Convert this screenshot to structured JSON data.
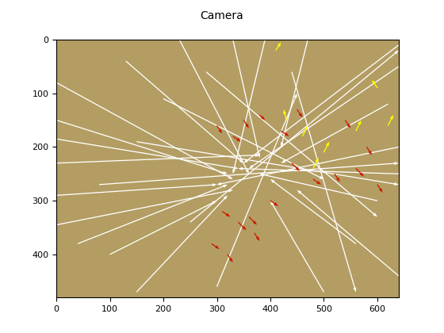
{
  "chart_data": {
    "type": "quiver",
    "title": "Camera",
    "color": "#b39d63",
    "xlim": [
      0,
      640
    ],
    "ylim": [
      480,
      0
    ],
    "xticks": [
      0,
      100,
      200,
      300,
      400,
      500,
      600
    ],
    "yticks": [
      0,
      100,
      200,
      300,
      400
    ],
    "grid": false,
    "series": [
      {
        "color": "#ffffff",
        "x0": [
          0,
          0,
          0,
          0,
          0,
          40,
          100,
          150,
          130,
          230,
          330,
          390,
          470,
          640,
          640,
          620,
          640,
          640,
          600,
          560,
          640,
          500,
          0,
          80,
          200,
          280,
          440,
          150,
          250,
          300
        ],
        "y0": [
          80,
          150,
          185,
          290,
          345,
          380,
          400,
          470,
          40,
          0,
          0,
          0,
          0,
          10,
          50,
          120,
          200,
          250,
          300,
          380,
          440,
          470,
          230,
          270,
          110,
          60,
          60,
          190,
          340,
          460
        ],
        "x1": [
          330,
          320,
          340,
          300,
          330,
          320,
          300,
          320,
          350,
          360,
          380,
          330,
          420,
          350,
          360,
          420,
          300,
          340,
          380,
          400,
          450,
          400,
          380,
          640,
          500,
          600,
          560,
          640,
          640,
          450
        ],
        "y1": [
          260,
          250,
          240,
          270,
          280,
          270,
          300,
          290,
          230,
          250,
          220,
          250,
          200,
          230,
          240,
          230,
          270,
          240,
          250,
          260,
          280,
          300,
          215,
          230,
          260,
          330,
          470,
          270,
          20,
          100
        ]
      },
      {
        "color": "#ffff00",
        "x0": [
          460,
          500,
          430,
          560,
          620,
          480,
          410,
          600
        ],
        "y0": [
          180,
          210,
          150,
          170,
          160,
          240,
          20,
          90
        ],
        "x1": [
          470,
          510,
          425,
          570,
          630,
          490,
          420,
          590
        ],
        "y1": [
          160,
          190,
          130,
          150,
          140,
          220,
          5,
          75
        ]
      },
      {
        "color": "#cc1a00",
        "x0": [
          300,
          330,
          350,
          380,
          420,
          450,
          480,
          520,
          560,
          600,
          310,
          340,
          370,
          400,
          290,
          320,
          360,
          540,
          580,
          440
        ],
        "y0": [
          160,
          180,
          150,
          140,
          170,
          130,
          260,
          250,
          240,
          270,
          320,
          340,
          360,
          300,
          380,
          400,
          330,
          150,
          200,
          230
        ],
        "x1": [
          310,
          345,
          360,
          390,
          435,
          460,
          495,
          530,
          575,
          610,
          325,
          355,
          380,
          415,
          305,
          330,
          375,
          550,
          590,
          455
        ],
        "y1": [
          175,
          190,
          165,
          150,
          180,
          145,
          270,
          265,
          255,
          285,
          330,
          355,
          375,
          310,
          390,
          415,
          345,
          165,
          215,
          245
        ]
      }
    ]
  }
}
